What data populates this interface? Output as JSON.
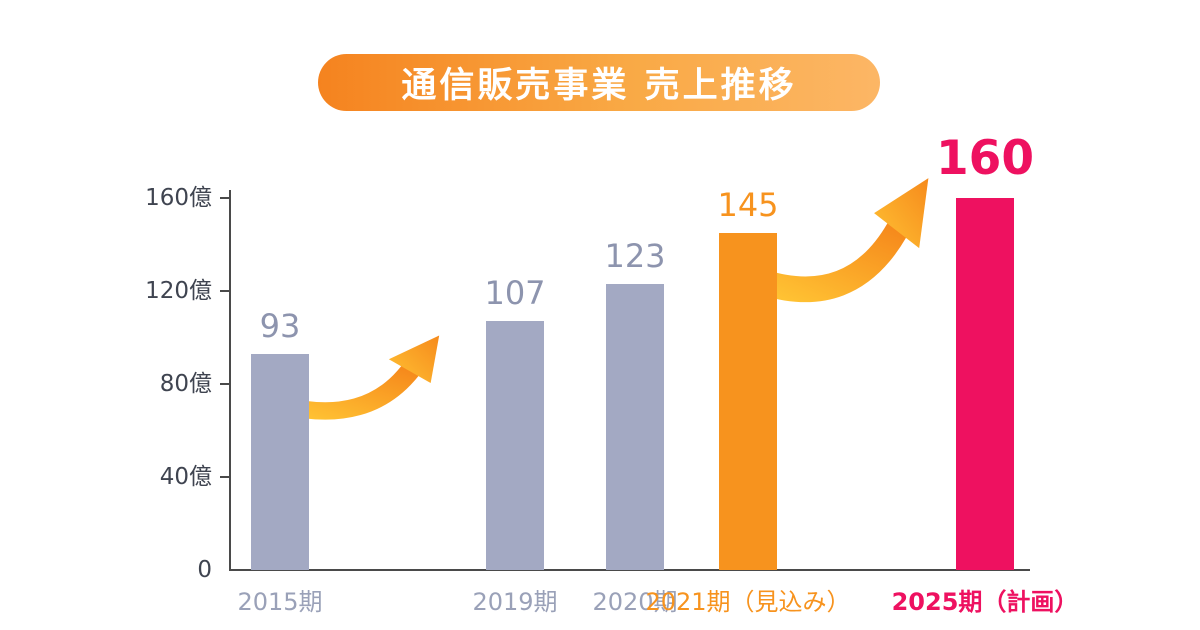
{
  "title": "通信販売事業 売上推移",
  "colors": {
    "title_gradient_start": "#f5831f",
    "title_gradient_end": "#fcb665",
    "past_bar": "#a3a9c3",
    "past_label": "#8d94ae",
    "forecast_bar": "#f7931e",
    "plan_bar": "#ee1160",
    "axis_line": "#4a4a4a",
    "axis_label": "#3f4450",
    "arrow_gradient_start": "#ffc233",
    "arrow_gradient_end": "#f68a1c"
  },
  "chart_data": {
    "type": "bar",
    "title": "通信販売事業 売上推移",
    "unit": "億",
    "ylim": [
      0,
      160
    ],
    "grid": false,
    "legend": "none",
    "yticks": [
      {
        "value": 0,
        "label": "0"
      },
      {
        "value": 40,
        "label": "40億"
      },
      {
        "value": 80,
        "label": "80億"
      },
      {
        "value": 120,
        "label": "120億"
      },
      {
        "value": 160,
        "label": "160億"
      }
    ],
    "bars": [
      {
        "category": "2015期",
        "value": 93,
        "type": "past"
      },
      {
        "category": "2019期",
        "value": 107,
        "type": "past"
      },
      {
        "category": "2020期",
        "value": 123,
        "type": "past"
      },
      {
        "category": "2021期（見込み）",
        "value": 145,
        "type": "forecast"
      },
      {
        "category": "2025期（計画）",
        "value": 160,
        "type": "plan"
      }
    ],
    "annotations": [
      "orange growth swoosh arrow between 2015期 and 2019期 bars",
      "orange growth swoosh arrow between 2021期（見込み） and 2025期（計画） bars"
    ]
  }
}
